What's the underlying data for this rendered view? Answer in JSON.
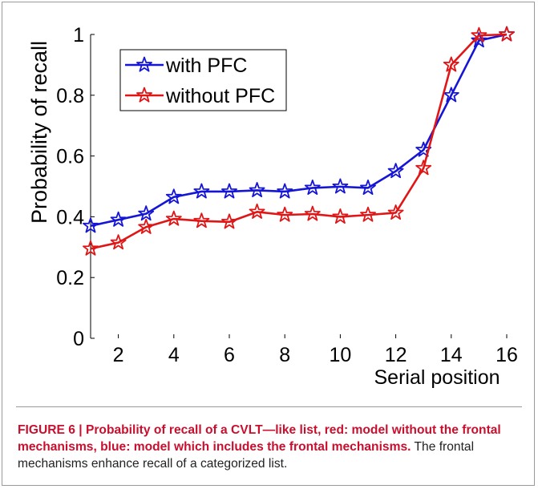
{
  "chart_data": {
    "type": "line",
    "ylabel": "Probability of recall",
    "xlabel": "Serial position",
    "xlim": [
      1,
      16
    ],
    "ylim": [
      0,
      1
    ],
    "xticks": [
      2,
      4,
      6,
      8,
      10,
      12,
      14,
      16
    ],
    "yticks": [
      0,
      0.2,
      0.4,
      0.6,
      0.8,
      1
    ],
    "ytick_labels": [
      "0",
      "0.2",
      "0.4",
      "0.6",
      "0.8",
      "1"
    ],
    "x": [
      1,
      2,
      3,
      4,
      5,
      6,
      7,
      8,
      9,
      10,
      11,
      12,
      13,
      14,
      15,
      16
    ],
    "series": [
      {
        "name": "with PFC",
        "color": "#1515d6",
        "marker": "star",
        "values": [
          0.37,
          0.39,
          0.41,
          0.465,
          0.483,
          0.483,
          0.487,
          0.483,
          0.495,
          0.499,
          0.495,
          0.55,
          0.62,
          0.8,
          0.98,
          1.0
        ]
      },
      {
        "name": "without PFC",
        "color": "#e01616",
        "marker": "star",
        "values": [
          0.295,
          0.315,
          0.366,
          0.393,
          0.386,
          0.383,
          0.416,
          0.406,
          0.409,
          0.4,
          0.406,
          0.413,
          0.56,
          0.9,
          0.997,
          1.0
        ]
      }
    ],
    "legend_position": "top-left",
    "grid": false
  },
  "caption": {
    "bold": "FIGURE 6 | Probability of recall of a CVLT—like list, red: model without the frontal mechanisms, blue: model which includes the frontal mechanisms.",
    "normal": " The frontal mechanisms enhance recall of a categorized list."
  }
}
